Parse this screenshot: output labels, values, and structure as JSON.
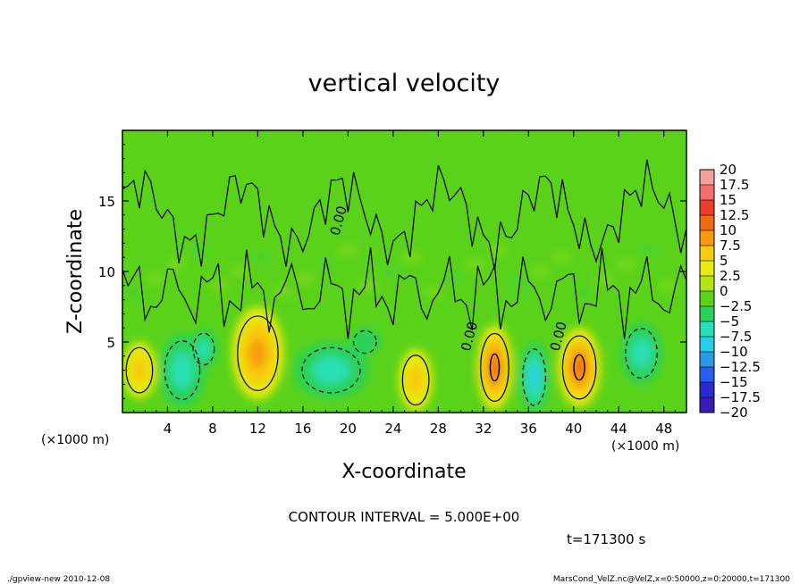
{
  "chart_data": {
    "type": "heatmap",
    "title": "vertical velocity",
    "xlabel": "X-coordinate",
    "ylabel": "Z-coordinate",
    "x_unit_left": "(×1000 m)",
    "x_unit_right": "(×1000 m)",
    "xlim": [
      0,
      50
    ],
    "ylim": [
      0,
      20
    ],
    "x_ticks": [
      4,
      8,
      12,
      16,
      20,
      24,
      28,
      32,
      36,
      40,
      44,
      48
    ],
    "y_ticks": [
      5,
      10,
      15
    ],
    "contour_interval_text": "CONTOUR INTERVAL = 5.000E+00",
    "time_text": "t=171300 s",
    "contour_labels": [
      {
        "text": "0.00",
        "x": 19.2,
        "y": 12.5
      },
      {
        "text": "0.00",
        "x": 30.8,
        "y": 4.3
      },
      {
        "text": "0.00",
        "x": 38.7,
        "y": 4.3
      }
    ],
    "colorbar": {
      "levels": [
        "20",
        "17.5",
        "15",
        "12.5",
        "10",
        "7.5",
        "5",
        "2.5",
        "0",
        "−2.5",
        "−5",
        "−7.5",
        "−10",
        "−12.5",
        "−15",
        "−17.5",
        "−20"
      ],
      "colors": [
        "#f7a0a0",
        "#f46e6e",
        "#ee3c2a",
        "#f06a10",
        "#f89a0c",
        "#f7cb0f",
        "#e8ea10",
        "#b2e414",
        "#5ad21a",
        "#2ad25a",
        "#2adfb4",
        "#2acde8",
        "#2a9ae8",
        "#2a5ef0",
        "#2a2ad0",
        "#3a1ab8",
        "#6a14b0"
      ]
    },
    "features": [
      {
        "kind": "up",
        "x": 1.5,
        "z": 3.0,
        "rx": 1.5,
        "rz": 2.0,
        "amp": 7
      },
      {
        "kind": "up",
        "x": 12.0,
        "z": 4.2,
        "rx": 2.3,
        "rz": 3.3,
        "amp": 8
      },
      {
        "kind": "up",
        "x": 26.0,
        "z": 2.3,
        "rx": 1.5,
        "rz": 2.2,
        "amp": 6
      },
      {
        "kind": "up",
        "x": 33.0,
        "z": 3.2,
        "rx": 1.6,
        "rz": 3.0,
        "amp": 10
      },
      {
        "kind": "up",
        "x": 40.5,
        "z": 3.2,
        "rx": 1.9,
        "rz": 2.8,
        "amp": 12
      },
      {
        "kind": "down",
        "x": 5.3,
        "z": 3.0,
        "rx": 2.0,
        "rz": 2.6,
        "amp": -7
      },
      {
        "kind": "down",
        "x": 7.2,
        "z": 4.5,
        "rx": 1.2,
        "rz": 1.4,
        "amp": -5
      },
      {
        "kind": "down",
        "x": 18.5,
        "z": 3.0,
        "rx": 3.3,
        "rz": 2.0,
        "amp": -6
      },
      {
        "kind": "down",
        "x": 36.5,
        "z": 2.5,
        "rx": 1.3,
        "rz": 2.5,
        "amp": -8
      },
      {
        "kind": "down",
        "x": 46.0,
        "z": 4.2,
        "rx": 1.8,
        "rz": 2.2,
        "amp": -7
      },
      {
        "kind": "down",
        "x": 21.5,
        "z": 5.0,
        "rx": 1.3,
        "rz": 1.0,
        "amp": -3
      }
    ]
  },
  "footer": {
    "left": "./gpview-new  2010-12-08",
    "right": "MarsCond_VelZ.nc@VelZ,x=0:50000,z=0:20000,t=171300"
  },
  "colors": {
    "background_field": "#5ad21a",
    "frame": "#000000"
  }
}
